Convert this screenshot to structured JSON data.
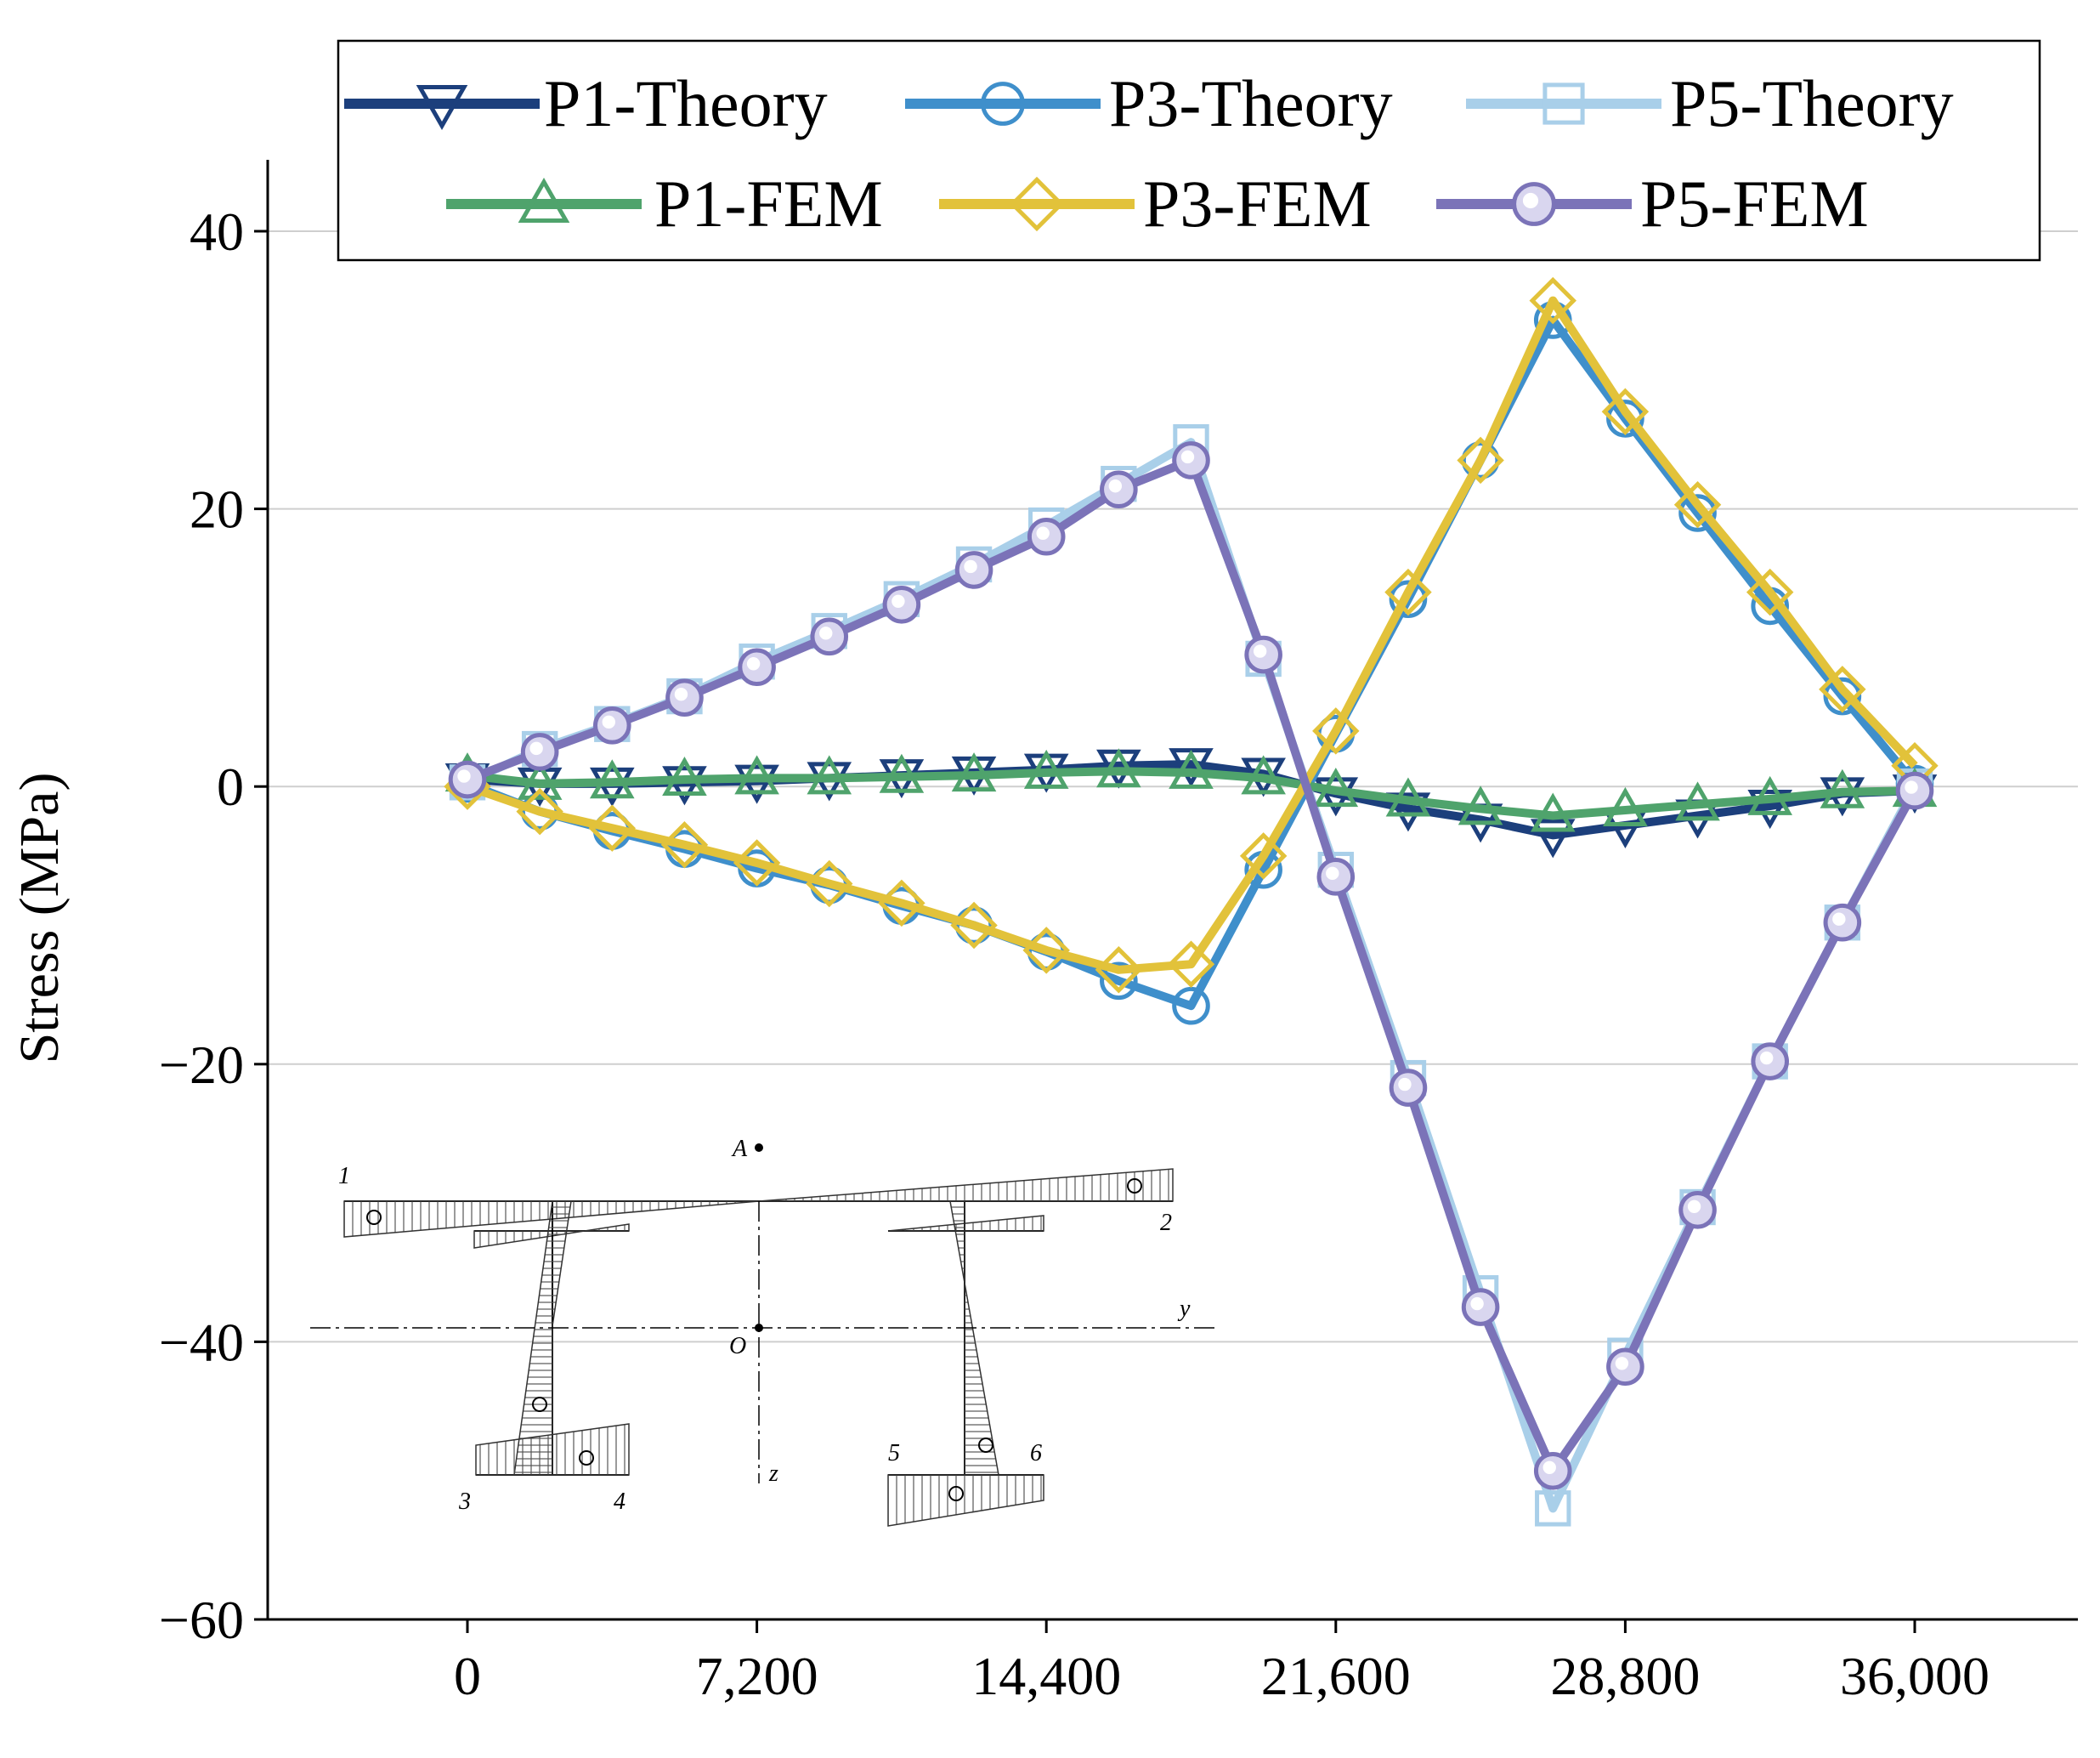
{
  "chart_data": {
    "type": "line",
    "title": "",
    "xlabel": "",
    "ylabel": "Stress (MPa)",
    "xlim": [
      -5000,
      41000
    ],
    "ylim": [
      -60,
      45
    ],
    "x_ticks": [
      0,
      7200,
      14400,
      21600,
      28800,
      36000
    ],
    "x_tick_labels": [
      "0",
      "7,200",
      "14,400",
      "21,600",
      "28,800",
      "36,000"
    ],
    "y_ticks": [
      40,
      20,
      0,
      -20,
      -40,
      -60
    ],
    "y_tick_labels": [
      "40",
      "20",
      "0",
      "−20",
      "−40",
      "−60"
    ],
    "grid": "horizontal",
    "legend_position": "top",
    "x": [
      0,
      1800,
      3600,
      5400,
      7200,
      9000,
      10800,
      12600,
      14400,
      16200,
      18000,
      19800,
      21600,
      23400,
      25200,
      27000,
      28800,
      30600,
      32400,
      34200,
      36000
    ],
    "series": [
      {
        "name": "P1-Theory",
        "color": "#1c3f7c",
        "marker": "triangle-down",
        "values": [
          0.5,
          0.2,
          0.2,
          0.3,
          0.4,
          0.6,
          0.8,
          1.0,
          1.2,
          1.5,
          1.6,
          0.9,
          -0.5,
          -1.6,
          -2.4,
          -3.5,
          -2.8,
          -2.1,
          -1.4,
          -0.5,
          -0.3
        ]
      },
      {
        "name": "P3-Theory",
        "color": "#3f8fcb",
        "marker": "circle",
        "values": [
          0.2,
          -1.8,
          -3.2,
          -4.5,
          -5.9,
          -7.1,
          -8.6,
          -10.0,
          -11.9,
          -14.0,
          -15.8,
          -6.0,
          3.8,
          13.5,
          23.5,
          33.6,
          26.5,
          19.7,
          13.0,
          6.5,
          0.2
        ]
      },
      {
        "name": "P5-Theory",
        "color": "#a9cfe9",
        "marker": "square",
        "values": [
          0.3,
          2.7,
          4.5,
          6.5,
          9.0,
          11.2,
          13.5,
          16.0,
          18.8,
          21.8,
          24.8,
          9.2,
          -6.0,
          -21.0,
          -36.5,
          -52.0,
          -41.0,
          -30.3,
          -19.8,
          -9.8,
          0.0
        ]
      },
      {
        "name": "P1-FEM",
        "color": "#4fa36c",
        "marker": "triangle-up",
        "values": [
          0.8,
          0.2,
          0.3,
          0.5,
          0.6,
          0.6,
          0.7,
          0.8,
          1.0,
          1.1,
          1.0,
          0.6,
          -0.3,
          -1.0,
          -1.6,
          -2.1,
          -1.7,
          -1.3,
          -0.9,
          -0.4,
          -0.3
        ]
      },
      {
        "name": "P3-FEM",
        "color": "#e2c23a",
        "marker": "diamond",
        "values": [
          0.0,
          -1.8,
          -3.0,
          -4.2,
          -5.5,
          -7.0,
          -8.4,
          -10.0,
          -11.8,
          -13.2,
          -12.8,
          -5.0,
          4.0,
          14.0,
          23.5,
          35.0,
          27.0,
          20.3,
          14.0,
          7.0,
          1.5
        ]
      },
      {
        "name": "P5-FEM",
        "color": "#7b73b8",
        "marker": "circle-filled",
        "values": [
          0.5,
          2.5,
          4.4,
          6.4,
          8.6,
          10.8,
          13.1,
          15.6,
          18.0,
          21.4,
          23.5,
          9.5,
          -6.5,
          -21.7,
          -37.5,
          -49.3,
          -41.8,
          -30.5,
          -19.8,
          -9.8,
          -0.3
        ]
      }
    ],
    "inset_labels": [
      "1",
      "2",
      "3",
      "4",
      "5",
      "6",
      "A",
      "O",
      "y",
      "z"
    ]
  }
}
